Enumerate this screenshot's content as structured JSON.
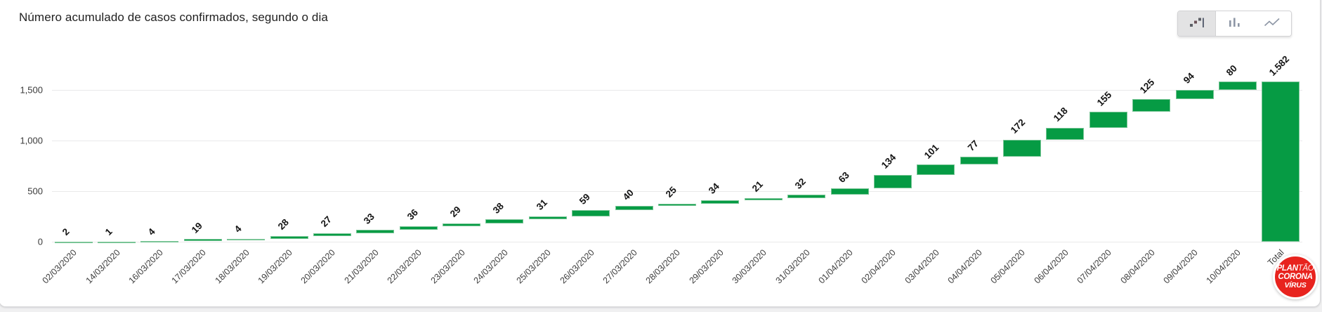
{
  "header": {
    "title": "Número acumulado de casos confirmados, segundo o dia"
  },
  "toolbar": {
    "buttons": [
      {
        "name": "waterfall-chart",
        "active": true
      },
      {
        "name": "column-chart",
        "active": false
      },
      {
        "name": "line-chart",
        "active": false
      }
    ]
  },
  "chart_data": {
    "type": "bar",
    "subtype": "waterfall",
    "title": "Número acumulado de casos confirmados, segundo o dia",
    "categories": [
      "02/03/2020",
      "14/03/2020",
      "16/03/2020",
      "17/03/2020",
      "18/03/2020",
      "19/03/2020",
      "20/03/2020",
      "21/03/2020",
      "22/03/2020",
      "23/03/2020",
      "24/03/2020",
      "25/03/2020",
      "26/03/2020",
      "27/03/2020",
      "28/03/2020",
      "29/03/2020",
      "30/03/2020",
      "31/03/2020",
      "01/04/2020",
      "02/04/2020",
      "03/04/2020",
      "04/04/2020",
      "05/04/2020",
      "06/04/2020",
      "07/04/2020",
      "08/04/2020",
      "09/04/2020",
      "10/04/2020"
    ],
    "values": [
      2,
      1,
      4,
      19,
      4,
      28,
      27,
      33,
      36,
      29,
      38,
      31,
      59,
      40,
      25,
      34,
      21,
      32,
      63,
      134,
      101,
      77,
      172,
      118,
      155,
      125,
      94,
      80
    ],
    "total": {
      "label": "Total",
      "value": 1582,
      "display": "1.582"
    },
    "y_ticks": [
      {
        "value": 0,
        "label": "0"
      },
      {
        "value": 500,
        "label": "500"
      },
      {
        "value": 1000,
        "label": "1,000"
      },
      {
        "value": 1500,
        "label": "1,500"
      }
    ],
    "ylim": [
      0,
      1583
    ],
    "grid": true,
    "legend": "none",
    "bar_color": "#069b44",
    "bar_border_color": "#79c596"
  },
  "logo": {
    "line1_strong": "PLAN",
    "line1_light": "TÃO",
    "line2": "CORONA",
    "line3": "VÍRUS",
    "color": "#e8231e"
  }
}
